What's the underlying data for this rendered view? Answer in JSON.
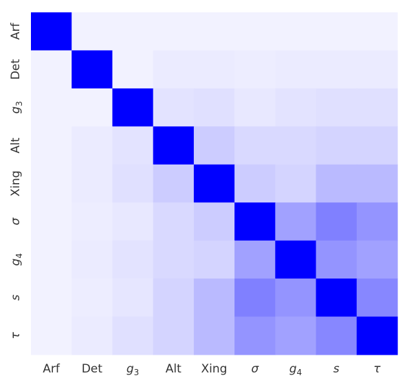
{
  "chart_data": {
    "type": "heatmap",
    "title": "",
    "xlabel": "",
    "ylabel": "",
    "colormap": {
      "low": "#ffffff",
      "high": "#0000ff"
    },
    "value_range": [
      0,
      1
    ],
    "categories": [
      "Arf",
      "Det",
      "g3",
      "Alt",
      "Xing",
      "σ",
      "g4",
      "s",
      "τ"
    ],
    "tick_labels": [
      {
        "base": "Arf",
        "sub": "",
        "italic": false
      },
      {
        "base": "Det",
        "sub": "",
        "italic": false
      },
      {
        "base": "g",
        "sub": "3",
        "italic": true
      },
      {
        "base": "Alt",
        "sub": "",
        "italic": false
      },
      {
        "base": "Xing",
        "sub": "",
        "italic": false
      },
      {
        "base": "σ",
        "sub": "",
        "italic": true
      },
      {
        "base": "g",
        "sub": "4",
        "italic": true
      },
      {
        "base": "s",
        "sub": "",
        "italic": true
      },
      {
        "base": "τ",
        "sub": "",
        "italic": true
      }
    ],
    "values": [
      [
        1.0,
        0.05,
        0.05,
        0.05,
        0.05,
        0.05,
        0.05,
        0.05,
        0.05
      ],
      [
        0.05,
        1.0,
        0.05,
        0.08,
        0.08,
        0.07,
        0.08,
        0.08,
        0.08
      ],
      [
        0.05,
        0.05,
        1.0,
        0.11,
        0.12,
        0.09,
        0.11,
        0.12,
        0.12
      ],
      [
        0.05,
        0.08,
        0.11,
        1.0,
        0.2,
        0.15,
        0.15,
        0.17,
        0.17
      ],
      [
        0.05,
        0.08,
        0.12,
        0.2,
        1.0,
        0.2,
        0.17,
        0.27,
        0.27
      ],
      [
        0.05,
        0.07,
        0.09,
        0.15,
        0.2,
        1.0,
        0.37,
        0.5,
        0.42
      ],
      [
        0.05,
        0.08,
        0.11,
        0.15,
        0.17,
        0.37,
        1.0,
        0.42,
        0.37
      ],
      [
        0.05,
        0.07,
        0.1,
        0.17,
        0.27,
        0.5,
        0.42,
        1.0,
        0.47
      ],
      [
        0.05,
        0.08,
        0.12,
        0.17,
        0.27,
        0.42,
        0.37,
        0.47,
        1.0
      ]
    ]
  }
}
